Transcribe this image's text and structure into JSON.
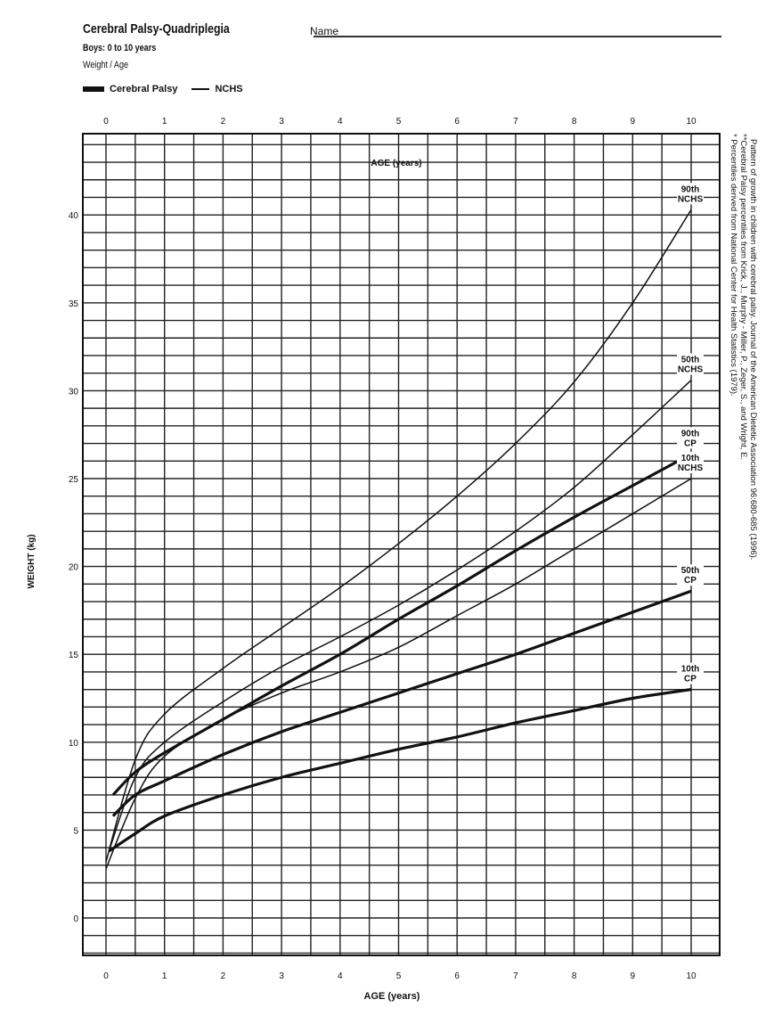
{
  "header": {
    "title": "Cerebral Palsy-Quadriplegia",
    "subtitle": "Boys: 0 to 10 years",
    "measure": "Weight / Age",
    "name_label": "Name",
    "legend": [
      {
        "label": "Cerebral Palsy",
        "style": "thick"
      },
      {
        "label": "NCHS",
        "style": "thin"
      }
    ]
  },
  "footnotes": [
    "* Percentiles derived from National Center for Health Statistics (1979).",
    "**Cerebral Palsy percentiles from Krick, J., Murphy - Miller, P., Zeger, S., and Wright, E.",
    "Pattern of growth in children with cerebral palsy. Journal of the American Dietetic Association 96:680-685 (1996)."
  ],
  "chart_data": {
    "type": "line",
    "title": "Cerebral Palsy-Quadriplegia — Boys: 0 to 10 years, Weight / Age",
    "xlabel": "AGE (years)",
    "ylabel": "WEIGHT (kg)",
    "xlim": [
      -0.4,
      10.5
    ],
    "ylim": [
      -2,
      44.6
    ],
    "x_ticks": [
      "0",
      "1",
      "2",
      "3",
      "4",
      "5",
      "6",
      "7",
      "8",
      "9",
      "10"
    ],
    "y_ticks": [
      "0",
      "5",
      "10",
      "15",
      "20",
      "25",
      "30",
      "35",
      "40"
    ],
    "grid": true,
    "legend_position": "top-left",
    "series": [
      {
        "name": "90th NCHS",
        "label": [
          "90th",
          "NCHS"
        ],
        "style": "thin",
        "points": [
          [
            0,
            3.2
          ],
          [
            0.5,
            9
          ],
          [
            1,
            11.6
          ],
          [
            2,
            14.2
          ],
          [
            3,
            16.5
          ],
          [
            4,
            18.8
          ],
          [
            5,
            21.3
          ],
          [
            6,
            24
          ],
          [
            7,
            27
          ],
          [
            8,
            30.5
          ],
          [
            9,
            35
          ],
          [
            10,
            40.3
          ]
        ]
      },
      {
        "name": "50th NCHS",
        "label": [
          "50th",
          "NCHS"
        ],
        "style": "thin",
        "points": [
          [
            0.05,
            3.8
          ],
          [
            0.5,
            8
          ],
          [
            1,
            10
          ],
          [
            2,
            12.3
          ],
          [
            3,
            14.3
          ],
          [
            4,
            16
          ],
          [
            5,
            17.8
          ],
          [
            6,
            19.8
          ],
          [
            7,
            22
          ],
          [
            8,
            24.5
          ],
          [
            9,
            27.5
          ],
          [
            10,
            30.6
          ]
        ]
      },
      {
        "name": "90th CP",
        "label": [
          "90th",
          "CP"
        ],
        "style": "thick",
        "points": [
          [
            0.12,
            7
          ],
          [
            0.5,
            8.3
          ],
          [
            1,
            9.4
          ],
          [
            2,
            11.3
          ],
          [
            3,
            13.2
          ],
          [
            4,
            15
          ],
          [
            5,
            17
          ],
          [
            6,
            18.9
          ],
          [
            7,
            20.9
          ],
          [
            8,
            22.8
          ],
          [
            9,
            24.6
          ],
          [
            10,
            26.4
          ]
        ]
      },
      {
        "name": "10th NCHS",
        "label": [
          "10th",
          "NCHS"
        ],
        "style": "thin",
        "points": [
          [
            0,
            2.8
          ],
          [
            0.5,
            6.8
          ],
          [
            1,
            9.2
          ],
          [
            2,
            11.3
          ],
          [
            3,
            12.8
          ],
          [
            4,
            14
          ],
          [
            5,
            15.4
          ],
          [
            6,
            17.2
          ],
          [
            7,
            19
          ],
          [
            8,
            21
          ],
          [
            9,
            23
          ],
          [
            10,
            25
          ]
        ]
      },
      {
        "name": "50th CP",
        "label": [
          "50th",
          "CP"
        ],
        "style": "thick",
        "points": [
          [
            0.12,
            5.8
          ],
          [
            0.5,
            7
          ],
          [
            1,
            7.8
          ],
          [
            2,
            9.3
          ],
          [
            3,
            10.6
          ],
          [
            4,
            11.7
          ],
          [
            5,
            12.8
          ],
          [
            6,
            13.9
          ],
          [
            7,
            15
          ],
          [
            8,
            16.2
          ],
          [
            9,
            17.4
          ],
          [
            10,
            18.6
          ]
        ]
      },
      {
        "name": "10th CP",
        "label": [
          "10th",
          "CP"
        ],
        "style": "thick",
        "points": [
          [
            0.05,
            3.8
          ],
          [
            0.5,
            4.8
          ],
          [
            1,
            5.8
          ],
          [
            2,
            7
          ],
          [
            3,
            8
          ],
          [
            4,
            8.8
          ],
          [
            5,
            9.6
          ],
          [
            6,
            10.3
          ],
          [
            7,
            11.1
          ],
          [
            8,
            11.8
          ],
          [
            9,
            12.5
          ],
          [
            10,
            13
          ]
        ]
      }
    ]
  }
}
